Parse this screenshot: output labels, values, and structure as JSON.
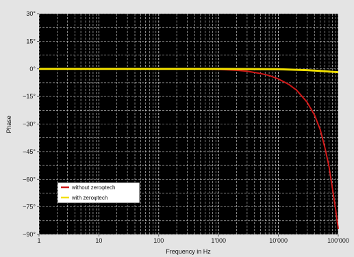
{
  "chart_data": {
    "type": "line",
    "xlabel": "Frequency in Hz",
    "ylabel": "Phase",
    "xscale": "log",
    "xlim": [
      1,
      100000
    ],
    "ylim": [
      -90,
      30
    ],
    "grid": true,
    "legend_position": "bottom-left",
    "x_ticks": [
      {
        "value": 1,
        "label": "1"
      },
      {
        "value": 10,
        "label": "10"
      },
      {
        "value": 100,
        "label": "100"
      },
      {
        "value": 1000,
        "label": "1'000"
      },
      {
        "value": 10000,
        "label": "10'000"
      },
      {
        "value": 100000,
        "label": "100'000"
      }
    ],
    "y_ticks": [
      {
        "value": 30,
        "label": "30°"
      },
      {
        "value": 15,
        "label": "15°"
      },
      {
        "value": 0,
        "label": "0°"
      },
      {
        "value": -15,
        "label": "−15°"
      },
      {
        "value": -30,
        "label": "−30°"
      },
      {
        "value": -45,
        "label": "−45°"
      },
      {
        "value": -60,
        "label": "−60°"
      },
      {
        "value": -75,
        "label": "−75°"
      },
      {
        "value": -90,
        "label": "−90°"
      }
    ],
    "series": [
      {
        "name": "without zeroφtech",
        "color": "#d01818",
        "points": [
          [
            1,
            0
          ],
          [
            100,
            0
          ],
          [
            500,
            -0.1
          ],
          [
            1000,
            -0.3
          ],
          [
            2000,
            -0.8
          ],
          [
            3000,
            -1.3
          ],
          [
            5000,
            -2.5
          ],
          [
            7000,
            -3.6
          ],
          [
            10000,
            -5.5
          ],
          [
            15000,
            -8.5
          ],
          [
            20000,
            -11.5
          ],
          [
            30000,
            -18
          ],
          [
            40000,
            -25
          ],
          [
            50000,
            -33
          ],
          [
            60000,
            -43
          ],
          [
            70000,
            -53
          ],
          [
            80000,
            -65
          ],
          [
            90000,
            -76
          ],
          [
            100000,
            -87
          ]
        ]
      },
      {
        "name": "with zeroφtech",
        "color": "#f2e000",
        "points": [
          [
            1,
            0
          ],
          [
            1000,
            0
          ],
          [
            10000,
            -0.2
          ],
          [
            30000,
            -0.7
          ],
          [
            50000,
            -1.1
          ],
          [
            80000,
            -1.6
          ],
          [
            100000,
            -1.8
          ]
        ]
      }
    ]
  }
}
